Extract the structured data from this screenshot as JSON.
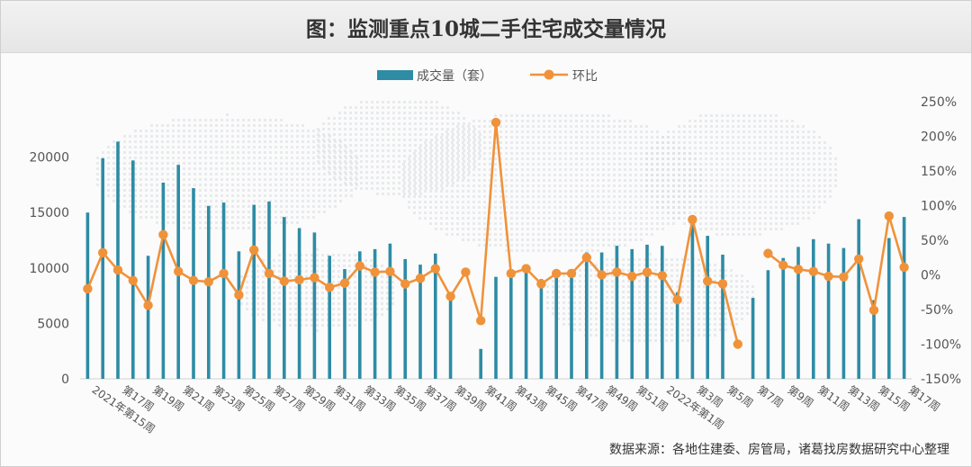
{
  "chart_data": {
    "type": "bar",
    "title": "图：监测重点10城二手住宅成交量情况",
    "source": "数据来源：各地住建委、房管局，诸葛找房数据研究中心整理",
    "categories": [
      "2021年第15周",
      "第16周",
      "第17周",
      "第18周",
      "第19周",
      "第20周",
      "第21周",
      "第22周",
      "第23周",
      "第24周",
      "第25周",
      "第26周",
      "第27周",
      "第28周",
      "第29周",
      "第30周",
      "第31周",
      "第32周",
      "第33周",
      "第34周",
      "第35周",
      "第36周",
      "第37周",
      "第38周",
      "第39周",
      "第40周",
      "第41周",
      "第42周",
      "第43周",
      "第44周",
      "第45周",
      "第46周",
      "第47周",
      "第48周",
      "第49周",
      "第50周",
      "第51周",
      "第52周",
      "2022年第1周",
      "第2周",
      "第3周",
      "第4周",
      "第5周",
      "第6周",
      "第7周",
      "第8周",
      "第9周",
      "第10周",
      "第11周",
      "第12周",
      "第13周",
      "第14周",
      "第15周",
      "第16周",
      "第17周"
    ],
    "x_tick_labels": [
      {
        "index": 0,
        "text": "2021年第15周"
      },
      {
        "index": 2,
        "text": "第17周"
      },
      {
        "index": 4,
        "text": "第19周"
      },
      {
        "index": 6,
        "text": "第21周"
      },
      {
        "index": 8,
        "text": "第23周"
      },
      {
        "index": 10,
        "text": "第25周"
      },
      {
        "index": 12,
        "text": "第27周"
      },
      {
        "index": 14,
        "text": "第29周"
      },
      {
        "index": 16,
        "text": "第31周"
      },
      {
        "index": 18,
        "text": "第33周"
      },
      {
        "index": 20,
        "text": "第35周"
      },
      {
        "index": 22,
        "text": "第37周"
      },
      {
        "index": 24,
        "text": "第39周"
      },
      {
        "index": 26,
        "text": "第41周"
      },
      {
        "index": 28,
        "text": "第43周"
      },
      {
        "index": 30,
        "text": "第45周"
      },
      {
        "index": 32,
        "text": "第47周"
      },
      {
        "index": 34,
        "text": "第49周"
      },
      {
        "index": 36,
        "text": "第51周"
      },
      {
        "index": 38,
        "text": "2022年第1周"
      },
      {
        "index": 40,
        "text": "第3周"
      },
      {
        "index": 42,
        "text": "第5周"
      },
      {
        "index": 44,
        "text": "第7周"
      },
      {
        "index": 46,
        "text": "第9周"
      },
      {
        "index": 48,
        "text": "第11周"
      },
      {
        "index": 50,
        "text": "第13周"
      },
      {
        "index": 52,
        "text": "第15周"
      },
      {
        "index": 54,
        "text": "第17周"
      }
    ],
    "series": [
      {
        "name": "成交量（套）",
        "type": "bar",
        "axis": "left",
        "color": "#2e8ca5",
        "values": [
          15000,
          19900,
          21400,
          19700,
          11100,
          17700,
          19300,
          17200,
          15600,
          15900,
          11500,
          15700,
          16000,
          14600,
          13600,
          13200,
          11100,
          9900,
          11500,
          11700,
          12200,
          10800,
          10300,
          11300,
          7600,
          null,
          2700,
          9200,
          9300,
          10300,
          9000,
          9200,
          9200,
          11400,
          11400,
          12000,
          11700,
          12100,
          12000,
          7800,
          14000,
          12900,
          11200,
          null,
          7300,
          9800,
          10900,
          11900,
          12600,
          12200,
          11800,
          14400,
          7100,
          12700,
          14600
        ]
      },
      {
        "name": "环比",
        "type": "line",
        "axis": "right",
        "color": "#f0923a",
        "values": [
          -20,
          32,
          7,
          -8,
          -44,
          58,
          5,
          -8,
          -10,
          2,
          -29,
          36,
          2,
          -9,
          -7,
          -4,
          -18,
          -12,
          13,
          4,
          5,
          -13,
          -5,
          9,
          -31,
          4,
          -66,
          220,
          2,
          9,
          -13,
          2,
          2,
          25,
          0,
          4,
          -2,
          4,
          -1,
          -36,
          80,
          -9,
          -13,
          -100,
          null,
          31,
          14,
          8,
          5,
          -2,
          -3,
          23,
          -51,
          85,
          11
        ]
      }
    ],
    "y_left": {
      "min": 0,
      "max": 25000,
      "ticks": [
        0,
        5000,
        10000,
        15000,
        20000
      ]
    },
    "y_right": {
      "min": -150,
      "max": 250,
      "ticks": [
        250,
        200,
        150,
        100,
        50,
        0,
        -50,
        -100,
        -150
      ],
      "format": "percent"
    },
    "legend_position": "top-center"
  }
}
